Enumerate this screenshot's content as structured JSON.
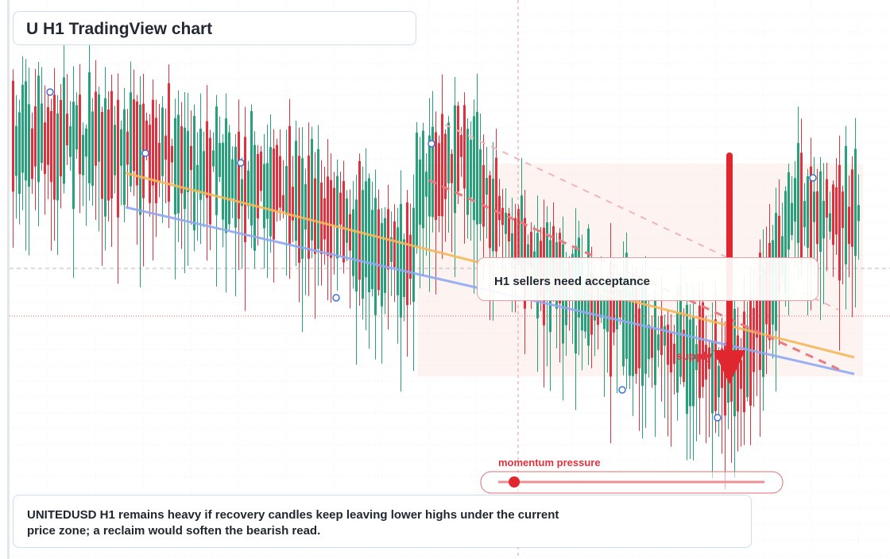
{
  "title": "U H1 TradingView chart",
  "annotation_text": "H1 sellers need acceptance",
  "caption": "UNITEDUSD H1 remains heavy if recovery candles keep leaving lower highs under the current price zone; a reclaim would soften the bearish read.",
  "chart_data": {
    "type": "candlestick",
    "symbol": "UNITEDUSD",
    "timeframe": "H1",
    "zone_label": "supply zone",
    "meter_label": "momentum pressure",
    "meter_level": 0.06,
    "arrow_direction": "down",
    "colors": {
      "up": "#26a17b",
      "down": "#e0323e",
      "orange_line": "#f5b85a",
      "blue_line": "#8fa9f2",
      "dash_dark": "#e97a80",
      "dash_light": "#f3b4b8",
      "arrow": "#e0262e",
      "zone": "#fbe7e2",
      "zone_text": "#e0323e"
    }
  }
}
